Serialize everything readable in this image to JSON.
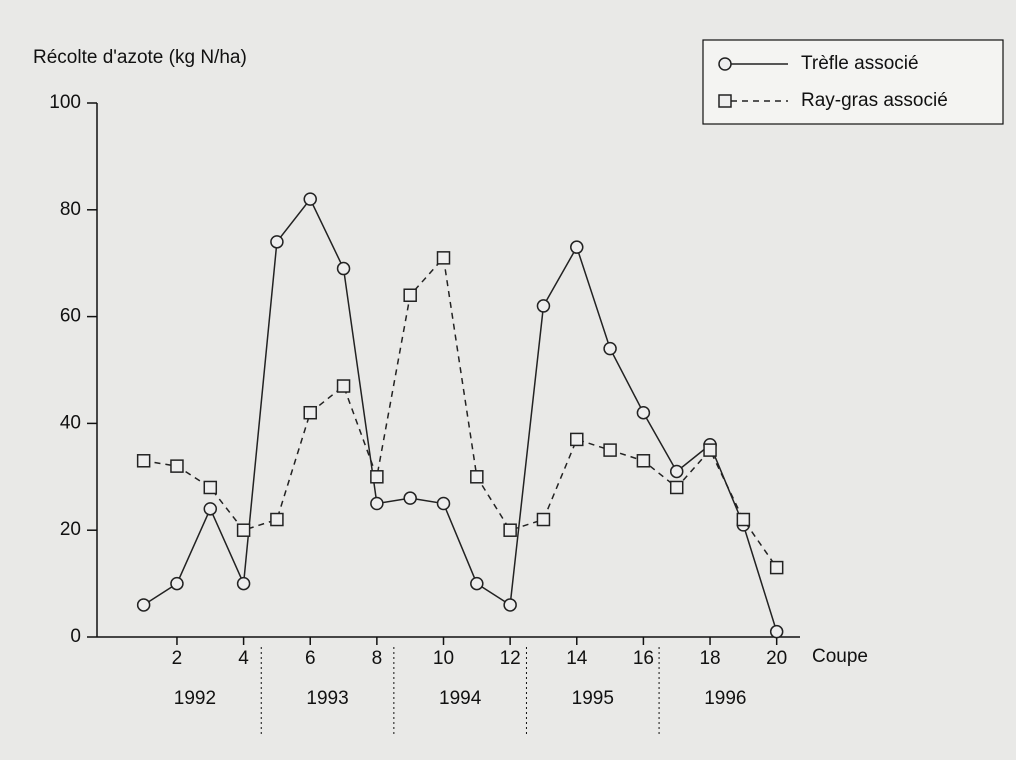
{
  "chart_data": {
    "type": "line",
    "y_label": "Récolte d'azote (kg N/ha)",
    "x_label": "Coupe",
    "x": [
      1,
      2,
      3,
      4,
      5,
      6,
      7,
      8,
      9,
      10,
      11,
      12,
      13,
      14,
      15,
      16,
      17,
      18,
      19,
      20
    ],
    "series": [
      {
        "name": "Trèfle associé",
        "color": "#222222",
        "dash": "solid",
        "marker": "circle",
        "values": [
          6,
          10,
          24,
          10,
          74,
          82,
          69,
          25,
          26,
          25,
          10,
          6,
          62,
          73,
          54,
          42,
          31,
          36,
          21,
          1
        ]
      },
      {
        "name": "Ray-gras associé",
        "color": "#222222",
        "dash": "dashed",
        "marker": "square",
        "values": [
          33,
          32,
          28,
          20,
          22,
          42,
          47,
          30,
          64,
          71,
          30,
          20,
          22,
          37,
          35,
          33,
          28,
          35,
          22,
          13
        ]
      }
    ],
    "xlim": [
      -0.4,
      20.7
    ],
    "ylim": [
      0,
      100
    ],
    "xticks": [
      2,
      4,
      6,
      8,
      10,
      12,
      14,
      16,
      18,
      20
    ],
    "yticks": [
      0,
      20,
      40,
      60,
      80,
      100
    ],
    "year_labels": [
      "1992",
      "1993",
      "1994",
      "1995",
      "1996"
    ],
    "legend": "upper right"
  }
}
